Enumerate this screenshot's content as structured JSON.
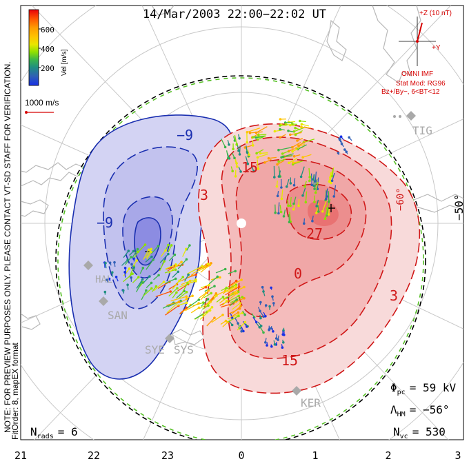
{
  "title": "14/Mar/2003 22:00−22:02 UT",
  "colorbar": {
    "label": "Vel [m/s]",
    "ticks": [
      "600",
      "400",
      "200"
    ],
    "colors": [
      "#e8000b",
      "#ff5500",
      "#ff9d00",
      "#ffc400",
      "#e7e700",
      "#8ee000",
      "#3ab54a",
      "#1f8f80",
      "#2f5fb6",
      "#1730e6"
    ]
  },
  "coordinates_label": "MLT coordinates",
  "reference_vector": "1000 m/s",
  "side_note": "NOTE: FOR PREVIEW PURPOSES ONLY. PLEASE CONTACT VT-SD STAFF FOR VERIFICATION.",
  "fit_info": "FitOrder: 8, mapEX format",
  "imf": {
    "z_label": "+Z (10 nT)",
    "y_label": "+Y",
    "source": "OMNI IMF",
    "model": "Stat Mod: RG96",
    "condition": "Bz+/By−, 6<BT<12"
  },
  "stations": [
    "TIG",
    "SAN",
    "SYE",
    "SYS",
    "KER",
    "HAL"
  ],
  "latitude_labels": [
    "−50°",
    "−60°"
  ],
  "contours": {
    "negative": [
      "−9",
      "−9"
    ],
    "positive": [
      "15",
      "27",
      "3",
      "0",
      "3",
      "15",
      "3"
    ]
  },
  "stats": {
    "phi_symbol": "Φ",
    "phi_sub": "pc",
    "phi_value": "= 59 kV",
    "lambda_symbol": "Λ",
    "lambda_sub": "HM",
    "lambda_value": "= −56°",
    "nvc_symbol": "N",
    "nvc_sub": "vc",
    "nvc_value": "= 530",
    "nrads_symbol": "N",
    "nrads_sub": "rads",
    "nrads_value": "= 6"
  },
  "mlt_axis": [
    "21",
    "22",
    "23",
    "0",
    "1",
    "2",
    "3"
  ],
  "colors": {
    "negative_fill": "#c9c9ee",
    "negative_line": "#1a2fb0",
    "positive_fill": "#f6c2c2",
    "positive_line": "#d01818",
    "imf_red": "#d60000",
    "boundary_green": "#56c026",
    "grid": "#c8c8c8",
    "coast": "#b8b8b8",
    "station": "#a9a9a9"
  }
}
